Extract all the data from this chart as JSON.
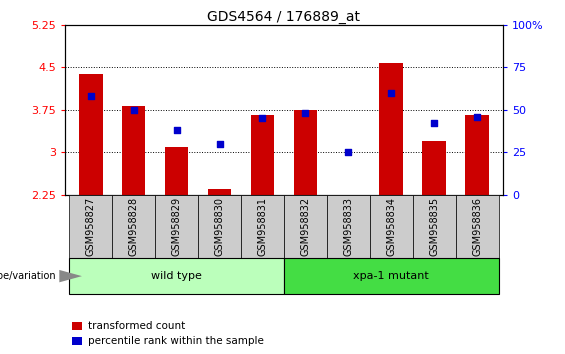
{
  "title": "GDS4564 / 176889_at",
  "samples": [
    "GSM958827",
    "GSM958828",
    "GSM958829",
    "GSM958830",
    "GSM958831",
    "GSM958832",
    "GSM958833",
    "GSM958834",
    "GSM958835",
    "GSM958836"
  ],
  "transformed_count": [
    4.38,
    3.82,
    3.1,
    2.35,
    3.65,
    3.75,
    2.22,
    4.57,
    3.2,
    3.65
  ],
  "percentile_rank": [
    58,
    50,
    38,
    30,
    45,
    48,
    25,
    60,
    42,
    46
  ],
  "ylim_left": [
    2.25,
    5.25
  ],
  "ylim_right": [
    0,
    100
  ],
  "yticks_left": [
    2.25,
    3.0,
    3.75,
    4.5,
    5.25
  ],
  "yticks_right": [
    0,
    25,
    50,
    75,
    100
  ],
  "ytick_labels_left": [
    "2.25",
    "3",
    "3.75",
    "4.5",
    "5.25"
  ],
  "ytick_labels_right": [
    "0",
    "25",
    "50",
    "75",
    "100%"
  ],
  "bar_color": "#cc0000",
  "dot_color": "#0000cc",
  "bar_bottom": 2.25,
  "groups": [
    {
      "label": "wild type",
      "n": 5,
      "color": "#bbffbb"
    },
    {
      "label": "xpa-1 mutant",
      "n": 5,
      "color": "#44dd44"
    }
  ],
  "legend_items": [
    {
      "label": "transformed count",
      "color": "#cc0000"
    },
    {
      "label": "percentile rank within the sample",
      "color": "#0000cc"
    }
  ],
  "geno_label": "genotype/variation",
  "cell_color": "#cccccc",
  "title_fontsize": 10,
  "tick_fontsize": 8,
  "label_fontsize": 7,
  "group_fontsize": 8,
  "legend_fontsize": 7.5
}
